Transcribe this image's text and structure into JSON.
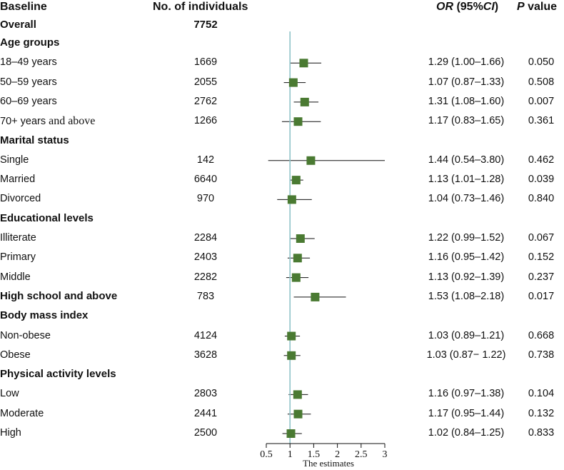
{
  "headers": {
    "baseline": "Baseline",
    "n": "No. of individuals",
    "or_italic": "OR",
    "or_rest": " (95%",
    "ci_italic": "CI",
    "or_close": ")",
    "p_italic": "P",
    "p_rest": " value"
  },
  "overall": {
    "label": "Overall",
    "n": "7752"
  },
  "rows": [
    {
      "type": "section",
      "label": "Age groups"
    },
    {
      "type": "data",
      "label": "18–49 years",
      "n": "1669",
      "or": 1.29,
      "lo": 1.0,
      "hi": 1.66,
      "ci_text": "1.29 (1.00–1.66)",
      "p": "0.050"
    },
    {
      "type": "data",
      "label": "50–59 years",
      "n": "2055",
      "or": 1.07,
      "lo": 0.87,
      "hi": 1.33,
      "ci_text": "1.07 (0.87–1.33)",
      "p": "0.508"
    },
    {
      "type": "data",
      "label": "60–69 years",
      "n": "2762",
      "or": 1.31,
      "lo": 1.08,
      "hi": 1.6,
      "ci_text": "1.31 (1.08–1.60)",
      "p": "0.007"
    },
    {
      "type": "data",
      "label": "70+ years",
      "label_suffix": " and above",
      "n": "1266",
      "or": 1.17,
      "lo": 0.83,
      "hi": 1.65,
      "ci_text": "1.17 (0.83–1.65)",
      "p": "0.361"
    },
    {
      "type": "section",
      "label": "Marital status"
    },
    {
      "type": "data",
      "label": "Single",
      "n": "142",
      "or": 1.44,
      "lo": 0.54,
      "hi": 3.8,
      "ci_text": "1.44 (0.54–3.80)",
      "p": "0.462"
    },
    {
      "type": "data",
      "label": "Married",
      "n": "6640",
      "or": 1.13,
      "lo": 1.01,
      "hi": 1.28,
      "ci_text": "1.13 (1.01–1.28)",
      "p": "0.039"
    },
    {
      "type": "data",
      "label": "Divorced",
      "n": "970",
      "or": 1.04,
      "lo": 0.73,
      "hi": 1.46,
      "ci_text": "1.04 (0.73–1.46)",
      "p": "0.840"
    },
    {
      "type": "section",
      "label": "Educational levels"
    },
    {
      "type": "data",
      "label": "Illiterate",
      "n": "2284",
      "or": 1.22,
      "lo": 0.99,
      "hi": 1.52,
      "ci_text": "1.22 (0.99–1.52)",
      "p": "0.067"
    },
    {
      "type": "data",
      "label": "Primary",
      "n": "2403",
      "or": 1.16,
      "lo": 0.95,
      "hi": 1.42,
      "ci_text": "1.16 (0.95–1.42)",
      "p": "0.152"
    },
    {
      "type": "data",
      "label": "Middle",
      "n": "2282",
      "or": 1.13,
      "lo": 0.92,
      "hi": 1.39,
      "ci_text": "1.13 (0.92–1.39)",
      "p": "0.237"
    },
    {
      "type": "data",
      "label": "High school and above",
      "bold": true,
      "n": "783",
      "or": 1.53,
      "lo": 1.08,
      "hi": 2.18,
      "ci_text": "1.53 (1.08–2.18)",
      "p": "0.017"
    },
    {
      "type": "section",
      "label": "Body mass index"
    },
    {
      "type": "data",
      "label": "Non-obese",
      "n": "4124",
      "or": 1.03,
      "lo": 0.89,
      "hi": 1.21,
      "ci_text": "1.03 (0.89–1.21)",
      "p": "0.668"
    },
    {
      "type": "data",
      "label": "Obese",
      "n": "3628",
      "or": 1.03,
      "lo": 0.87,
      "hi": 1.22,
      "ci_text": "1.03 (0.87− 1.22)",
      "p": "0.738"
    },
    {
      "type": "section",
      "label": "Physical activity levels"
    },
    {
      "type": "data",
      "label": "Low",
      "n": "2803",
      "or": 1.16,
      "lo": 0.97,
      "hi": 1.38,
      "ci_text": "1.16 (0.97–1.38)",
      "p": "0.104"
    },
    {
      "type": "data",
      "label": "Moderate",
      "n": "2441",
      "or": 1.17,
      "lo": 0.95,
      "hi": 1.44,
      "ci_text": "1.17 (0.95–1.44)",
      "p": "0.132"
    },
    {
      "type": "data",
      "label": "High",
      "n": "2500",
      "or": 1.02,
      "lo": 0.84,
      "hi": 1.25,
      "ci_text": "1.02 (0.84–1.25)",
      "p": "0.833"
    }
  ],
  "chart_data": {
    "type": "forest",
    "xlabel": "The estimates",
    "xlim": [
      0.5,
      3
    ],
    "ticks": [
      "0.5",
      "1",
      "1.5",
      "2",
      "2.5",
      "3"
    ],
    "tick_values": [
      0.5,
      1,
      1.5,
      2,
      2.5,
      3
    ],
    "reference_line": 1,
    "colors": {
      "marker": "#4a7a32",
      "reference": "#8fc3c9",
      "line": "#111111"
    }
  }
}
